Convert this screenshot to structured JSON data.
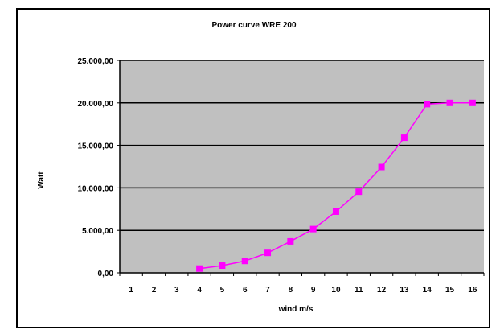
{
  "chart_data": {
    "type": "line",
    "title": "Power curve WRE 200",
    "xlabel": "wind m/s",
    "ylabel": "Watt",
    "categories": [
      "1",
      "2",
      "3",
      "4",
      "5",
      "6",
      "7",
      "8",
      "9",
      "10",
      "11",
      "12",
      "13",
      "14",
      "15",
      "16"
    ],
    "y_tick_labels": [
      "0,00",
      "5.000,00",
      "10.000,00",
      "15.000,00",
      "20.000,00",
      "25.000,00"
    ],
    "y_ticks": [
      0,
      5000,
      10000,
      15000,
      20000,
      25000
    ],
    "ylim": [
      0,
      25000
    ],
    "grid": true,
    "legend": "none",
    "series": [
      {
        "x": [
          4,
          5,
          6,
          7,
          8,
          9,
          10,
          11,
          12,
          13,
          14,
          15,
          16
        ],
        "values": [
          500,
          850,
          1400,
          2350,
          3700,
          5150,
          7200,
          9550,
          12450,
          15900,
          19850,
          20000,
          20000
        ],
        "color": "#ff00ff"
      }
    ],
    "colors": {
      "plot_background": "#c0c0c0",
      "gridline": "#000000",
      "series": "#ff00ff"
    }
  }
}
